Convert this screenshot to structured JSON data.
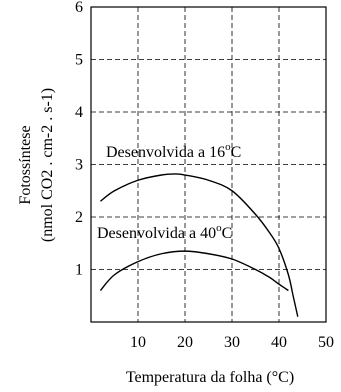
{
  "chart_data": {
    "type": "line",
    "xlabel": "Temperatura da folha (°C)",
    "ylabel_line1": "Fotossíntese",
    "ylabel_line2": "(nmol CO2 . cm-2 . s-1)",
    "xlim": [
      0,
      50
    ],
    "ylim": [
      0,
      6
    ],
    "xticks": [
      10,
      20,
      30,
      40,
      50
    ],
    "yticks": [
      1,
      2,
      3,
      4,
      5,
      6
    ],
    "grid": true,
    "series": [
      {
        "name": "Desenvolvida a 16°C",
        "x": [
          2,
          5,
          10,
          15,
          18,
          20,
          25,
          30,
          35,
          38,
          40,
          42,
          43,
          44
        ],
        "y": [
          2.3,
          2.5,
          2.7,
          2.8,
          2.82,
          2.8,
          2.7,
          2.5,
          2.05,
          1.7,
          1.4,
          0.9,
          0.5,
          0.1
        ]
      },
      {
        "name": "Desenvolvida a 40°C",
        "x": [
          2,
          5,
          10,
          15,
          20,
          25,
          30,
          35,
          38,
          40,
          42
        ],
        "y": [
          0.6,
          0.9,
          1.15,
          1.3,
          1.35,
          1.3,
          1.2,
          1.0,
          0.85,
          0.72,
          0.6
        ]
      }
    ],
    "annotations": [
      {
        "prefix": "Desenvolvida a 16",
        "sup": "o",
        "suffix": "C",
        "series": 0
      },
      {
        "prefix": "Desenvolvida a 40",
        "sup": "o",
        "suffix": "C",
        "series": 1
      }
    ]
  }
}
